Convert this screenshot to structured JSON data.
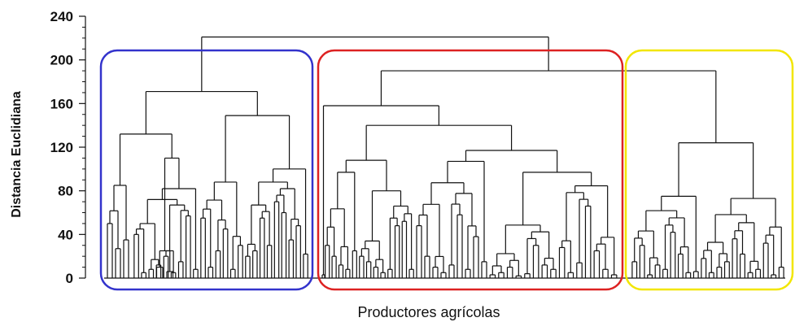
{
  "chart_data": {
    "type": "dendrogram",
    "ylabel": "Distancia Euclidiana",
    "xlabel": "Productores agrícolas",
    "ylim": [
      0,
      240
    ],
    "yticks": [
      0,
      40,
      80,
      120,
      160,
      200,
      240
    ],
    "cluster_highlight_colors": [
      "#3333cc",
      "#dd2222",
      "#f2e600"
    ],
    "line_color": "#111111",
    "merge_heights": {
      "root": 221,
      "blue_and_rest": 190,
      "red_yellow": 190,
      "blue_top": 171,
      "blue_left": 132,
      "blue_right": 149,
      "red_top": 158,
      "red_main": 140,
      "red_left": 108,
      "red_right": 117,
      "yellow_top": 124,
      "yellow_left": 75,
      "yellow_right": 73
    }
  }
}
